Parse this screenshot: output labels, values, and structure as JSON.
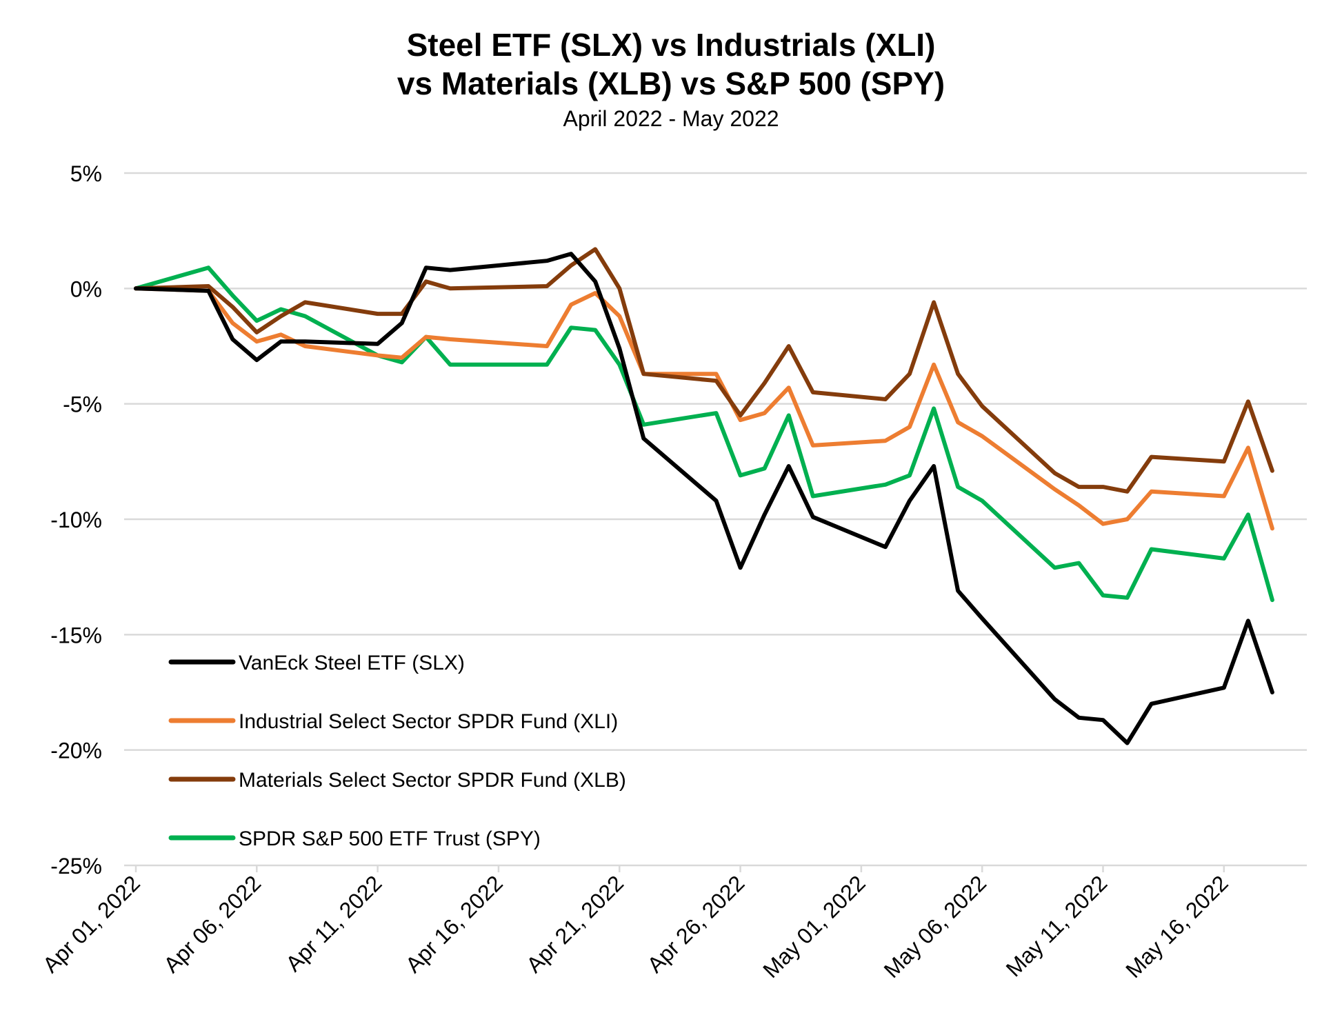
{
  "chart_data": {
    "type": "line",
    "title_line1": "Steel ETF (SLX) vs Industrials (XLI)",
    "title_line2": "vs Materials (XLB) vs S&P 500 (SPY)",
    "subtitle": "April 2022 - May 2022",
    "ylim": [
      -25,
      5
    ],
    "yticks": [
      5,
      0,
      -5,
      -10,
      -15,
      -20,
      -25
    ],
    "ytick_labels": [
      "5%",
      "0%",
      "-5%",
      "-10%",
      "-15%",
      "-20%",
      "-25%"
    ],
    "xticks": [
      "2022-04-01",
      "2022-04-06",
      "2022-04-11",
      "2022-04-16",
      "2022-04-21",
      "2022-04-26",
      "2022-05-01",
      "2022-05-06",
      "2022-05-11",
      "2022-05-16"
    ],
    "xtick_labels": [
      "Apr 01, 2022",
      "Apr 06, 2022",
      "Apr 11, 2022",
      "Apr 16, 2022",
      "Apr 21, 2022",
      "Apr 26, 2022",
      "May 01, 2022",
      "May 06, 2022",
      "May 11, 2022",
      "May 16, 2022"
    ],
    "xlim": [
      "2022-04-01",
      "2022-05-19"
    ],
    "grid": "horizontal",
    "legend_position": "bottom-left",
    "x": [
      "2022-04-01",
      "2022-04-04",
      "2022-04-05",
      "2022-04-06",
      "2022-04-07",
      "2022-04-08",
      "2022-04-11",
      "2022-04-12",
      "2022-04-13",
      "2022-04-14",
      "2022-04-18",
      "2022-04-19",
      "2022-04-20",
      "2022-04-21",
      "2022-04-22",
      "2022-04-25",
      "2022-04-26",
      "2022-04-27",
      "2022-04-28",
      "2022-04-29",
      "2022-05-02",
      "2022-05-03",
      "2022-05-04",
      "2022-05-05",
      "2022-05-06",
      "2022-05-09",
      "2022-05-10",
      "2022-05-11",
      "2022-05-12",
      "2022-05-13",
      "2022-05-16",
      "2022-05-17",
      "2022-05-18"
    ],
    "series": [
      {
        "name": "VanEck Steel ETF (SLX)",
        "color": "#000000",
        "values": [
          0,
          -0.1,
          -2.2,
          -3.1,
          -2.3,
          -2.3,
          -2.4,
          -1.5,
          0.9,
          0.8,
          1.2,
          1.5,
          0.3,
          -2.6,
          -6.5,
          -9.2,
          -12.1,
          -9.8,
          -7.7,
          -9.9,
          -11.2,
          -9.2,
          -7.7,
          -13.1,
          -14.3,
          -17.8,
          -18.6,
          -18.7,
          -19.7,
          -18.0,
          -17.3,
          -14.4,
          -17.5
        ]
      },
      {
        "name": "Industrial Select Sector SPDR Fund (XLI)",
        "color": "#ED7D31",
        "values": [
          0,
          -0.1,
          -1.5,
          -2.3,
          -2.0,
          -2.5,
          -2.9,
          -3.0,
          -2.1,
          -2.2,
          -2.5,
          -0.7,
          -0.2,
          -1.2,
          -3.7,
          -3.7,
          -5.7,
          -5.4,
          -4.3,
          -6.8,
          -6.6,
          -6.0,
          -3.3,
          -5.8,
          -6.4,
          -8.7,
          -9.4,
          -10.2,
          -10.0,
          -8.8,
          -9.0,
          -6.9,
          -10.4
        ]
      },
      {
        "name": "Materials Select Sector SPDR Fund (XLB)",
        "color": "#843C0C",
        "values": [
          0,
          0.1,
          -0.8,
          -1.9,
          -1.2,
          -0.6,
          -1.1,
          -1.1,
          0.3,
          -0.0,
          0.1,
          1.0,
          1.7,
          0.0,
          -3.7,
          -4.0,
          -5.5,
          -4.1,
          -2.5,
          -4.5,
          -4.8,
          -3.7,
          -0.6,
          -3.7,
          -5.1,
          -8.0,
          -8.6,
          -8.6,
          -8.8,
          -7.3,
          -7.5,
          -4.9,
          -7.9
        ]
      },
      {
        "name": "SPDR S&P 500 ETF Trust (SPY)",
        "color": "#00B050",
        "values": [
          0,
          0.9,
          -0.3,
          -1.4,
          -0.9,
          -1.2,
          -2.9,
          -3.2,
          -2.1,
          -3.3,
          -3.3,
          -1.7,
          -1.8,
          -3.3,
          -5.9,
          -5.4,
          -8.1,
          -7.8,
          -5.5,
          -9.0,
          -8.5,
          -8.1,
          -5.2,
          -8.6,
          -9.2,
          -12.1,
          -11.9,
          -13.3,
          -13.4,
          -11.3,
          -11.7,
          -9.8,
          -13.5
        ]
      }
    ]
  }
}
